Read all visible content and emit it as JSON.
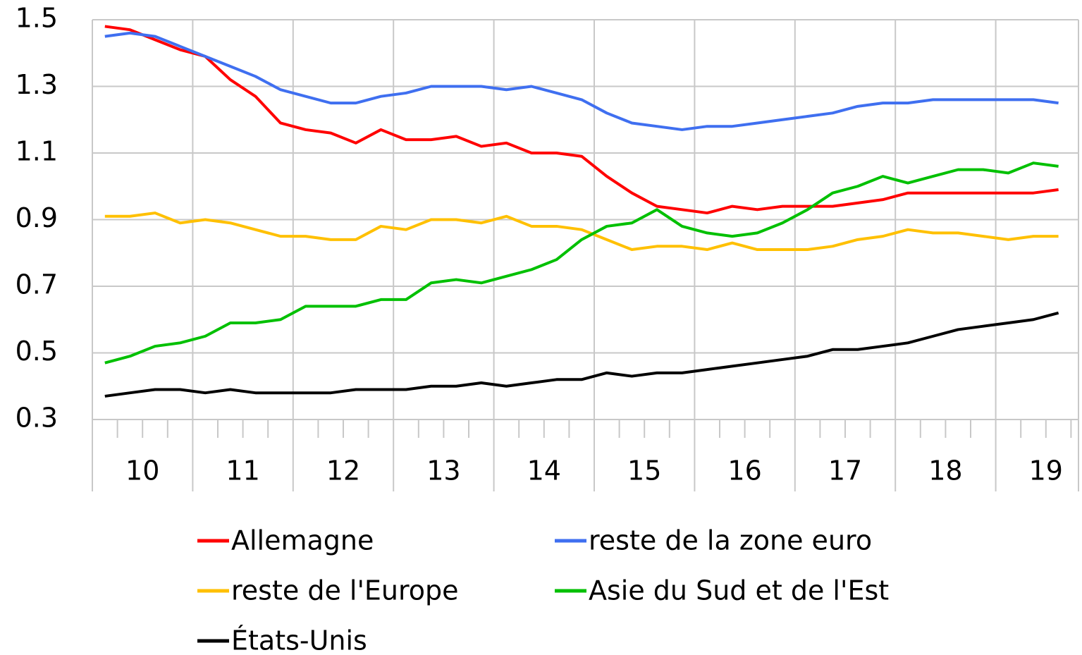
{
  "chart_data": {
    "type": "line",
    "categories": [
      "10",
      null,
      null,
      null,
      "11",
      null,
      null,
      null,
      "12",
      null,
      null,
      null,
      "13",
      null,
      null,
      null,
      "14",
      null,
      null,
      null,
      "15",
      null,
      null,
      null,
      "16",
      null,
      null,
      null,
      "17",
      null,
      null,
      null,
      "18",
      null,
      null,
      null,
      "19",
      null,
      null
    ],
    "series": [
      {
        "name": "Allemagne",
        "color": "#ff0000",
        "values": [
          1.48,
          1.47,
          1.44,
          1.41,
          1.39,
          1.32,
          1.27,
          1.19,
          1.17,
          1.16,
          1.13,
          1.17,
          1.14,
          1.14,
          1.15,
          1.12,
          1.13,
          1.1,
          1.1,
          1.09,
          1.03,
          0.98,
          0.94,
          0.93,
          0.92,
          0.94,
          0.93,
          0.94,
          0.94,
          0.94,
          0.95,
          0.96,
          0.98,
          0.98,
          0.98,
          0.98,
          0.98,
          0.98,
          0.99
        ]
      },
      {
        "name": "reste de la zone euro",
        "color": "#3f6ff0",
        "values": [
          1.45,
          1.46,
          1.45,
          1.42,
          1.39,
          1.36,
          1.33,
          1.29,
          1.27,
          1.25,
          1.25,
          1.27,
          1.28,
          1.3,
          1.3,
          1.3,
          1.29,
          1.3,
          1.28,
          1.26,
          1.22,
          1.19,
          1.18,
          1.17,
          1.18,
          1.18,
          1.19,
          1.2,
          1.21,
          1.22,
          1.24,
          1.25,
          1.25,
          1.26,
          1.26,
          1.26,
          1.26,
          1.26,
          1.25
        ]
      },
      {
        "name": "reste de l'Europe",
        "color": "#ffc000",
        "values": [
          0.91,
          0.91,
          0.92,
          0.89,
          0.9,
          0.89,
          0.87,
          0.85,
          0.85,
          0.84,
          0.84,
          0.88,
          0.87,
          0.9,
          0.9,
          0.89,
          0.91,
          0.88,
          0.88,
          0.87,
          0.84,
          0.81,
          0.82,
          0.82,
          0.81,
          0.83,
          0.81,
          0.81,
          0.81,
          0.82,
          0.84,
          0.85,
          0.87,
          0.86,
          0.86,
          0.85,
          0.84,
          0.85,
          0.85
        ]
      },
      {
        "name": "Asie du Sud et de l'Est",
        "color": "#00c000",
        "values": [
          0.47,
          0.49,
          0.52,
          0.53,
          0.55,
          0.59,
          0.59,
          0.6,
          0.64,
          0.64,
          0.64,
          0.66,
          0.66,
          0.71,
          0.72,
          0.71,
          0.73,
          0.75,
          0.78,
          0.84,
          0.88,
          0.89,
          0.93,
          0.88,
          0.86,
          0.85,
          0.86,
          0.89,
          0.93,
          0.98,
          1.0,
          1.03,
          1.01,
          1.03,
          1.05,
          1.05,
          1.04,
          1.07,
          1.06
        ]
      },
      {
        "name": "États-Unis",
        "color": "#000000",
        "values": [
          0.37,
          0.38,
          0.39,
          0.39,
          0.38,
          0.39,
          0.38,
          0.38,
          0.38,
          0.38,
          0.39,
          0.39,
          0.39,
          0.4,
          0.4,
          0.41,
          0.4,
          0.41,
          0.42,
          0.42,
          0.44,
          0.43,
          0.44,
          0.44,
          0.45,
          0.46,
          0.47,
          0.48,
          0.49,
          0.51,
          0.51,
          0.52,
          0.53,
          0.55,
          0.57,
          0.58,
          0.59,
          0.6,
          0.62
        ]
      }
    ],
    "ylim": [
      0.3,
      1.5
    ],
    "yticks": [
      0.3,
      0.5,
      0.7,
      0.9,
      1.1,
      1.3,
      1.5
    ],
    "grid": true
  }
}
